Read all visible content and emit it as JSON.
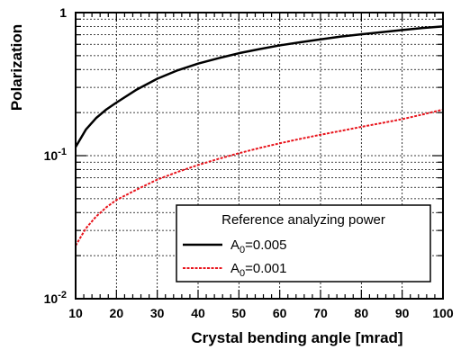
{
  "chart_data": {
    "type": "line",
    "xlabel": "Crystal bending angle [mrad]",
    "ylabel": "Polarization",
    "xlim": [
      10,
      100
    ],
    "ylim": [
      0.01,
      1
    ],
    "yscale": "log",
    "grid": true,
    "x_ticks": [
      "10",
      "20",
      "30",
      "40",
      "50",
      "60",
      "70",
      "80",
      "90",
      "100"
    ],
    "y_ticks": [
      {
        "base": "10",
        "exp": "-2",
        "value": 0.01
      },
      {
        "base": "10",
        "exp": "-1",
        "value": 0.1
      },
      {
        "base": "1",
        "exp": "",
        "value": 1
      }
    ],
    "legend": {
      "title": "Reference analyzing power",
      "position": "bottom-right",
      "entries": [
        {
          "prefix": "A",
          "sub": "0",
          "suffix": "=0.005"
        },
        {
          "prefix": "A",
          "sub": "0",
          "suffix": "=0.001"
        }
      ]
    },
    "series": [
      {
        "name": "A0=0.005",
        "color": "#000000",
        "style": "solid",
        "x": [
          10,
          12.5,
          15,
          17.5,
          20,
          25,
          30,
          35,
          40,
          45,
          50,
          55,
          60,
          65,
          70,
          75,
          80,
          85,
          90,
          95,
          100
        ],
        "y": [
          0.115,
          0.152,
          0.183,
          0.21,
          0.235,
          0.29,
          0.345,
          0.395,
          0.44,
          0.48,
          0.52,
          0.555,
          0.59,
          0.62,
          0.65,
          0.68,
          0.705,
          0.73,
          0.755,
          0.78,
          0.8
        ]
      },
      {
        "name": "A0=0.001",
        "color": "#e8141c",
        "style": "dashed",
        "x": [
          10,
          12.5,
          15,
          17.5,
          20,
          25,
          30,
          35,
          40,
          45,
          50,
          55,
          60,
          65,
          70,
          75,
          80,
          85,
          90,
          95,
          100
        ],
        "y": [
          0.0235,
          0.031,
          0.0375,
          0.0435,
          0.049,
          0.058,
          0.068,
          0.077,
          0.086,
          0.095,
          0.104,
          0.113,
          0.122,
          0.131,
          0.14,
          0.149,
          0.159,
          0.169,
          0.18,
          0.194,
          0.21
        ]
      }
    ]
  }
}
